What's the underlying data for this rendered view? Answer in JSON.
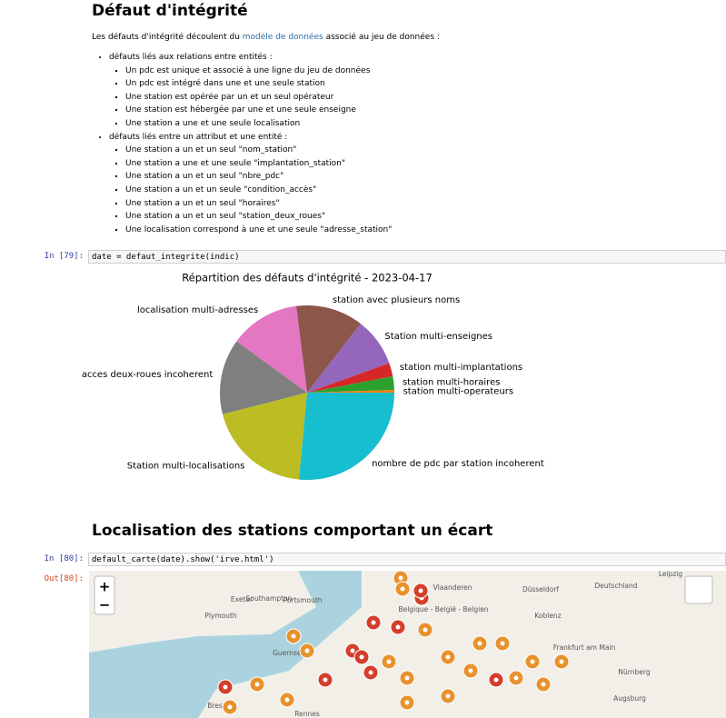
{
  "header": {
    "title": "Défaut d'intégrité"
  },
  "intro": {
    "before": "Les défauts d'intégrité découlent du ",
    "link": "modèle de données",
    "after": " associé au jeu de données :"
  },
  "groups": [
    {
      "label": "défauts liés aux relations entre entités :",
      "items": [
        "Un pdc est unique et associé à une ligne du jeu de données",
        "Un pdc est intégré dans une et une seule station",
        "Une station est opérée par un et un seul opérateur",
        "Une station est hébergée par une et une seule enseigne",
        "Une station a une et une seule localisation"
      ]
    },
    {
      "label": "défauts liés entre un attribut et une entité :",
      "items": [
        "Une station a un et un seul \"nom_station\"",
        "Une station a une et une seule \"implantation_station\"",
        "Une station a un et un seul \"nbre_pdc\"",
        "Une station a un et un seule \"condition_accès\"",
        "Une station a un et un seul \"horaires\"",
        "Une station a un et un seul \"station_deux_roues\"",
        "Une localisation correspond à une et une seule \"adresse_station\""
      ]
    }
  ],
  "cell1": {
    "prompt": "In [79]:",
    "code": "date = defaut_integrite(indic)"
  },
  "chart_data": {
    "type": "pie",
    "title": "Répartition des défauts d'intégrité - 2023-04-17",
    "categories": [
      "station multi-operateurs",
      "station multi-horaires",
      "station multi-implantations",
      "Station multi-enseignes",
      "station avec plusieurs noms",
      "localisation multi-adresses",
      "acces deux-roues incoherent",
      "Station multi-localisations",
      "nombre de pdc par station incoherent"
    ],
    "values": [
      0.5,
      2.5,
      2.5,
      9,
      12.5,
      13,
      14,
      19.5,
      26.5
    ],
    "colors": [
      "#ff7f0e",
      "#2ca02c",
      "#d62728",
      "#9467bd",
      "#8c564b",
      "#e377c2",
      "#7f7f7f",
      "#bcbd22",
      "#17becf"
    ]
  },
  "heading2": "Localisation des stations comportant un écart",
  "cell2": {
    "prompt": "In [80]:",
    "code": "default_carte(date).show('irve.html')",
    "out": "Out[80]:"
  },
  "map": {
    "zoom_in": "+",
    "zoom_out": "−",
    "places": [
      "Exeter",
      "Southampton",
      "Portsmouth",
      "Plymouth",
      "Guernsey",
      "Brest",
      "Rennes",
      "Vlaanderen",
      "Düsseldorf",
      "Leipzig",
      "Deutschland",
      "Belgique - België - Belgien",
      "Koblenz",
      "Frankfurt am Main",
      "Nürnberg",
      "Augsburg"
    ]
  }
}
